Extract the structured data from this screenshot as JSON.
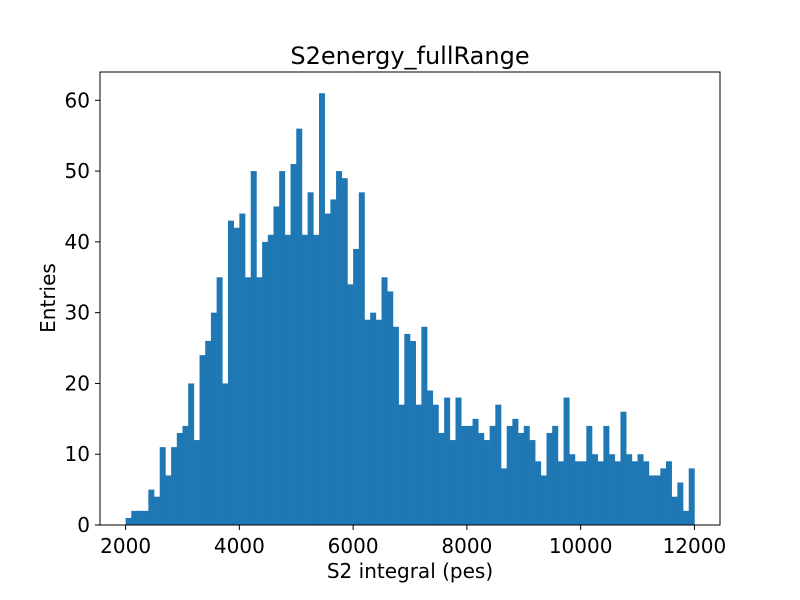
{
  "chart_data": {
    "type": "bar",
    "title": "S2energy_fullRange",
    "xlabel": "S2 integral (pes)",
    "ylabel": "Entries",
    "xlim": [
      1550,
      12450
    ],
    "ylim": [
      0,
      64
    ],
    "bin_start": 2000,
    "bin_width": 100,
    "values": [
      1,
      2,
      2,
      2,
      5,
      4,
      11,
      7,
      11,
      13,
      14,
      20,
      12,
      24,
      26,
      30,
      35,
      20,
      43,
      42,
      44,
      35,
      50,
      35,
      40,
      41,
      45,
      50,
      41,
      51,
      56,
      41,
      47,
      41,
      61,
      44,
      46,
      50,
      49,
      34,
      39,
      47,
      29,
      30,
      29,
      35,
      33,
      28,
      17,
      27,
      26,
      17,
      28,
      19,
      17,
      13,
      18,
      12,
      18,
      14,
      14,
      15,
      13,
      12,
      14,
      17,
      8,
      14,
      15,
      13,
      14,
      12,
      9,
      7,
      13,
      14,
      9,
      18,
      10,
      9,
      9,
      14,
      10,
      9,
      14,
      10,
      9,
      16,
      10,
      9,
      10,
      9,
      7,
      7,
      8,
      9,
      4,
      6,
      2,
      8
    ],
    "x_ticks": [
      2000,
      4000,
      6000,
      8000,
      10000,
      12000
    ],
    "x_tick_labels": [
      "2000",
      "4000",
      "6000",
      "8000",
      "10000",
      "12000"
    ],
    "y_ticks": [
      0,
      10,
      20,
      30,
      40,
      50,
      60
    ],
    "y_tick_labels": [
      "0",
      "10",
      "20",
      "30",
      "40",
      "50",
      "60"
    ],
    "bar_color": "#1f77b4",
    "grid": false,
    "legend": "none"
  }
}
